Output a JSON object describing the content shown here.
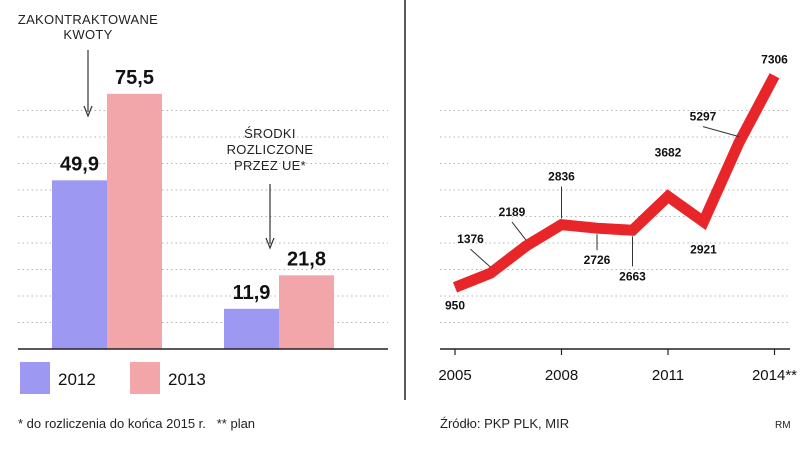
{
  "chart_data": [
    {
      "type": "bar",
      "annotations": {
        "contracted": [
          "ZAKONTRAKTOWANE",
          "KWOTY"
        ],
        "settled": [
          "ŚRODKI",
          "ROZLICZONE",
          "PRZEZ UE*"
        ]
      },
      "groups": [
        {
          "name": "contracted",
          "values": [
            49.9,
            75.5
          ],
          "labels": [
            "49,9",
            "75,5"
          ]
        },
        {
          "name": "settled",
          "values": [
            11.9,
            21.8
          ],
          "labels": [
            "11,9",
            "21,8"
          ]
        }
      ],
      "series": [
        {
          "name": "2012",
          "color": "#9d98f2"
        },
        {
          "name": "2013",
          "color": "#f3a6aa"
        }
      ],
      "ylim": [
        0,
        90
      ],
      "grid": true
    },
    {
      "type": "line",
      "x": [
        2005,
        2006,
        2007,
        2008,
        2009,
        2010,
        2011,
        2012,
        2013,
        2014
      ],
      "y": [
        950,
        1376,
        2189,
        2836,
        2726,
        2663,
        3682,
        2921,
        5297,
        7306
      ],
      "point_labels": [
        "950",
        "1376",
        "2189",
        "2836",
        "2726",
        "2663",
        "3682",
        "2921",
        "5297",
        "7306"
      ],
      "x_ticks": [
        "2005",
        "2008",
        "2011",
        "2014**"
      ],
      "color": "#e8262a",
      "ylim": [
        0,
        8000
      ],
      "grid": true
    }
  ],
  "footer": {
    "footnote": "* do rozliczenia do końca 2015 r.   ** plan",
    "source": "Źródło: PKP PLK, MIR",
    "credit": "RM"
  }
}
